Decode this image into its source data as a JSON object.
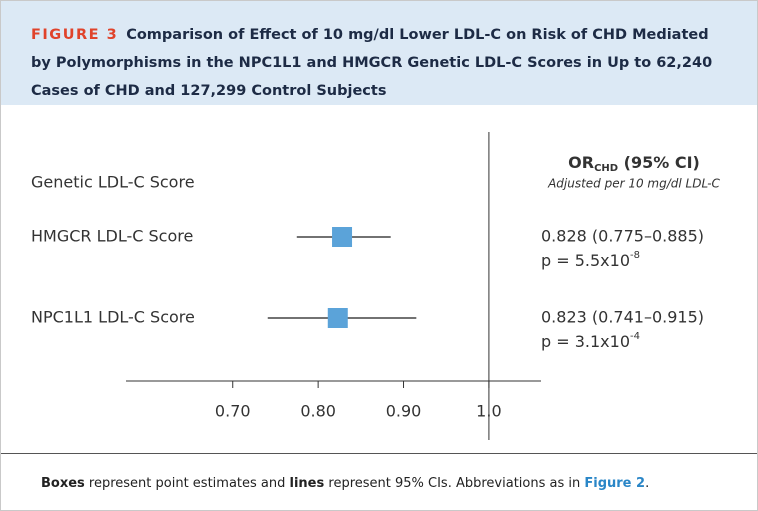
{
  "header": {
    "figure_label": "FIGURE 3",
    "title": "Comparison of Effect of 10 mg/dl Lower LDL-C on Risk of CHD Mediated by Polymorphisms in the NPC1L1 and HMGCR Genetic LDL-C Scores in Up to 62,240 Cases of CHD and 127,299 Control Subjects"
  },
  "chart_data": {
    "type": "forest",
    "row_header": "Genetic LDL-C Score",
    "estimate_header": {
      "prefix": "OR",
      "subscript": "CHD",
      "suffix": " (95% CI)"
    },
    "estimate_note": "Adjusted  per 10 mg/dl LDL-C",
    "categories": [
      "HMGCR LDL-C Score",
      "NPC1L1 LDL-C Score"
    ],
    "values": [
      0.828,
      0.823
    ],
    "ci_low": [
      0.775,
      0.741
    ],
    "ci_high": [
      0.885,
      0.915
    ],
    "value_labels": [
      "0.828 (0.775–0.885)",
      "0.823 (0.741–0.915)"
    ],
    "p_labels": [
      {
        "base": "p = 5.5x10",
        "exponent": "-8"
      },
      {
        "base": "p = 3.1x10",
        "exponent": "-4"
      }
    ],
    "color": "#5ba3d9",
    "xlim": [
      0.575,
      1.061
    ],
    "xticks": [
      {
        "value": 0.7,
        "label": "0.70"
      },
      {
        "value": 0.8,
        "label": "0.80"
      },
      {
        "value": 0.9,
        "label": "0.90"
      },
      {
        "value": 1,
        "label": "1.0"
      }
    ],
    "reference": 1
  },
  "footer": {
    "parts": [
      "Boxes",
      " represent point estimates and ",
      "lines",
      " represent 95% CIs. Abbreviations as in ",
      "Figure 2",
      "."
    ]
  }
}
